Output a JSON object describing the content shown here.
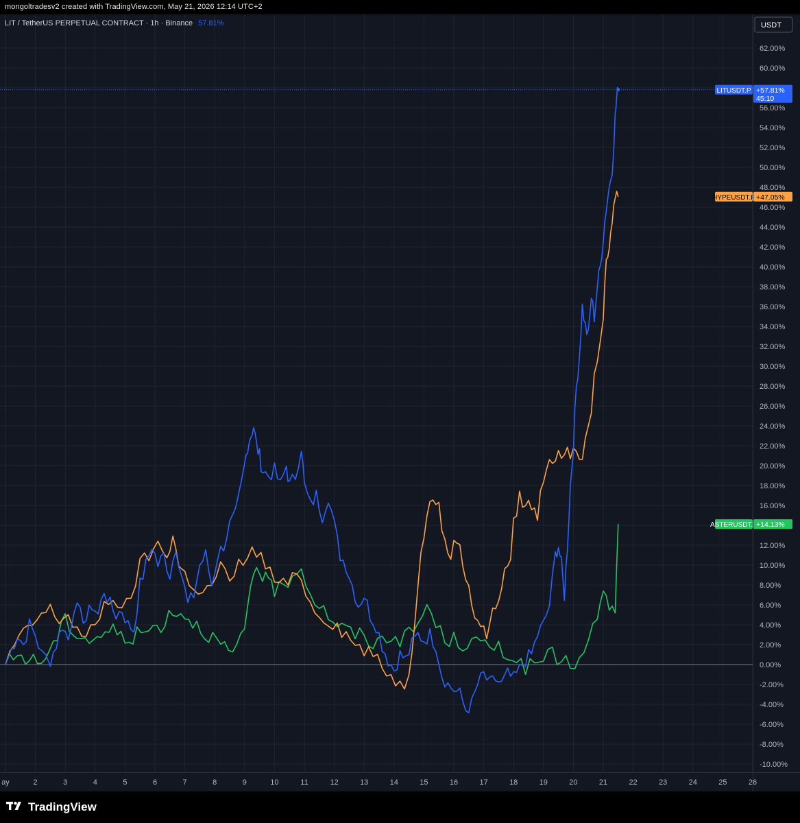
{
  "header": {
    "attribution": "mongoltradesv2 created with TradingView.com, May 21, 2026 12:14 UTC+2"
  },
  "symbol_bar": {
    "title": "LIT / TetherUS PERPETUAL CONTRACT · 1h · Binance",
    "change": "57.81%",
    "change_color": "#2962ff"
  },
  "currency_button": {
    "label": "USDT"
  },
  "footer": {
    "brand": "TradingView",
    "logo": "tradingview-logo-icon"
  },
  "colors": {
    "background": "#131722",
    "grid": "#1f2431",
    "axis_text": "#b2b5be",
    "zero_line": "#787b86",
    "lit": "#2962ff",
    "hype": "#ffa23f",
    "aster": "#22c55e"
  },
  "chart_data": {
    "type": "line",
    "title": "LIT / TetherUS PERPETUAL CONTRACT · 1h · Binance",
    "xlabel": "",
    "ylabel": "",
    "x_unit": "day of May 2026",
    "x_ticks": [
      "ay",
      "2",
      "3",
      "4",
      "5",
      "6",
      "7",
      "8",
      "9",
      "10",
      "11",
      "12",
      "13",
      "14",
      "15",
      "16",
      "17",
      "18",
      "19",
      "20",
      "21",
      "22",
      "23",
      "24",
      "25",
      "26"
    ],
    "x_range": [
      1,
      26
    ],
    "ylim": [
      -11,
      64
    ],
    "y_ticks": [
      "62.00%",
      "60.00%",
      "58.00%",
      "56.00%",
      "54.00%",
      "52.00%",
      "50.00%",
      "48.00%",
      "46.00%",
      "44.00%",
      "42.00%",
      "40.00%",
      "38.00%",
      "36.00%",
      "34.00%",
      "32.00%",
      "30.00%",
      "28.00%",
      "26.00%",
      "24.00%",
      "22.00%",
      "20.00%",
      "18.00%",
      "16.00%",
      "14.00%",
      "12.00%",
      "10.00%",
      "8.00%",
      "6.00%",
      "4.00%",
      "2.00%",
      "0.00%",
      "-2.00%",
      "-4.00%",
      "-6.00%",
      "-8.00%",
      "-10.00%"
    ],
    "grid": true,
    "zero_line": true,
    "series": [
      {
        "name": "LITUSDT.P",
        "label": "+57.81%",
        "countdown": "45:10",
        "color": "#2962ff",
        "points": [
          [
            1.0,
            0
          ],
          [
            1.2,
            1.5
          ],
          [
            1.4,
            3
          ],
          [
            1.6,
            2
          ],
          [
            1.8,
            4
          ],
          [
            2.0,
            3
          ],
          [
            2.2,
            1
          ],
          [
            2.5,
            0.5
          ],
          [
            2.7,
            2
          ],
          [
            2.9,
            4
          ],
          [
            3.1,
            2.5
          ],
          [
            3.3,
            6
          ],
          [
            3.5,
            5
          ],
          [
            3.7,
            4.5
          ],
          [
            3.9,
            6
          ],
          [
            4.1,
            5
          ],
          [
            4.3,
            7.5
          ],
          [
            4.5,
            6
          ],
          [
            4.7,
            5
          ],
          [
            4.9,
            5.5
          ],
          [
            5.1,
            4
          ],
          [
            5.3,
            3.5
          ],
          [
            5.5,
            8
          ],
          [
            5.7,
            10
          ],
          [
            5.9,
            12
          ],
          [
            6.1,
            10
          ],
          [
            6.3,
            11
          ],
          [
            6.5,
            9
          ],
          [
            6.7,
            12
          ],
          [
            6.9,
            9
          ],
          [
            7.1,
            6
          ],
          [
            7.3,
            7
          ],
          [
            7.5,
            10
          ],
          [
            7.7,
            11
          ],
          [
            7.9,
            8
          ],
          [
            8.1,
            11
          ],
          [
            8.3,
            12
          ],
          [
            8.5,
            14
          ],
          [
            8.7,
            15
          ],
          [
            8.9,
            18
          ],
          [
            9.0,
            20
          ],
          [
            9.1,
            22
          ],
          [
            9.2,
            23
          ],
          [
            9.3,
            24
          ],
          [
            9.4,
            22
          ],
          [
            9.5,
            21
          ],
          [
            9.6,
            19.5
          ],
          [
            9.8,
            19
          ],
          [
            10.0,
            19.5
          ],
          [
            10.2,
            18
          ],
          [
            10.4,
            20
          ],
          [
            10.5,
            18
          ],
          [
            10.7,
            19
          ],
          [
            10.9,
            22
          ],
          [
            11.0,
            18
          ],
          [
            11.2,
            16
          ],
          [
            11.4,
            17
          ],
          [
            11.6,
            15
          ],
          [
            11.8,
            17
          ],
          [
            12.0,
            14
          ],
          [
            12.2,
            11
          ],
          [
            12.4,
            10
          ],
          [
            12.6,
            8
          ],
          [
            12.8,
            6
          ],
          [
            13.0,
            7
          ],
          [
            13.2,
            5
          ],
          [
            13.4,
            4
          ],
          [
            13.6,
            2
          ],
          [
            13.8,
            0.5
          ],
          [
            14.0,
            -0.5
          ],
          [
            14.2,
            1
          ],
          [
            14.4,
            0.5
          ],
          [
            14.6,
            2
          ],
          [
            14.8,
            3
          ],
          [
            15.0,
            2.5
          ],
          [
            15.2,
            3
          ],
          [
            15.4,
            2
          ],
          [
            15.6,
            -1
          ],
          [
            15.8,
            -2
          ],
          [
            16.0,
            -2.5
          ],
          [
            16.2,
            -3
          ],
          [
            16.4,
            -4.5
          ],
          [
            16.6,
            -4
          ],
          [
            16.8,
            -2
          ],
          [
            17.0,
            -1
          ],
          [
            17.2,
            -2
          ],
          [
            17.4,
            -1.5
          ],
          [
            17.6,
            -2
          ],
          [
            17.8,
            -1
          ],
          [
            18.0,
            -1.5
          ],
          [
            18.2,
            -0.5
          ],
          [
            18.4,
            0.5
          ],
          [
            18.6,
            1
          ],
          [
            18.8,
            3
          ],
          [
            19.0,
            4
          ],
          [
            19.2,
            6
          ],
          [
            19.4,
            11
          ],
          [
            19.5,
            12
          ],
          [
            19.6,
            10
          ],
          [
            19.7,
            7
          ],
          [
            19.8,
            12
          ],
          [
            19.9,
            18
          ],
          [
            20.0,
            22
          ],
          [
            20.1,
            28
          ],
          [
            20.2,
            31
          ],
          [
            20.3,
            36
          ],
          [
            20.4,
            34
          ],
          [
            20.5,
            33
          ],
          [
            20.6,
            37
          ],
          [
            20.7,
            35
          ],
          [
            20.8,
            38
          ],
          [
            20.9,
            40
          ],
          [
            21.0,
            43
          ],
          [
            21.1,
            46
          ],
          [
            21.2,
            48
          ],
          [
            21.3,
            50
          ],
          [
            21.4,
            55
          ],
          [
            21.45,
            57
          ],
          [
            21.5,
            57.81
          ]
        ]
      },
      {
        "name": "HYPEUSDT.P",
        "label": "+47.05%",
        "color": "#ffa23f",
        "points": [
          [
            1.0,
            0
          ],
          [
            1.3,
            2
          ],
          [
            1.6,
            3
          ],
          [
            1.9,
            4
          ],
          [
            2.2,
            5
          ],
          [
            2.5,
            5.5
          ],
          [
            2.8,
            4.5
          ],
          [
            3.1,
            5
          ],
          [
            3.4,
            3.5
          ],
          [
            3.7,
            2.5
          ],
          [
            4.0,
            4
          ],
          [
            4.3,
            6
          ],
          [
            4.6,
            7
          ],
          [
            4.9,
            5
          ],
          [
            5.2,
            7
          ],
          [
            5.5,
            10
          ],
          [
            5.8,
            11
          ],
          [
            6.1,
            12
          ],
          [
            6.4,
            11
          ],
          [
            6.6,
            13
          ],
          [
            6.8,
            10
          ],
          [
            7.0,
            9
          ],
          [
            7.3,
            8
          ],
          [
            7.6,
            7
          ],
          [
            7.9,
            8
          ],
          [
            8.2,
            10
          ],
          [
            8.5,
            8
          ],
          [
            8.8,
            10
          ],
          [
            9.1,
            11
          ],
          [
            9.4,
            11.5
          ],
          [
            9.7,
            10
          ],
          [
            10.0,
            8.5
          ],
          [
            10.3,
            8
          ],
          [
            10.6,
            8.5
          ],
          [
            10.9,
            9
          ],
          [
            11.2,
            6
          ],
          [
            11.5,
            5
          ],
          [
            11.8,
            4.5
          ],
          [
            12.1,
            4
          ],
          [
            12.4,
            3
          ],
          [
            12.7,
            2
          ],
          [
            13.0,
            1.5
          ],
          [
            13.3,
            1
          ],
          [
            13.6,
            -0.5
          ],
          [
            13.9,
            -1
          ],
          [
            14.2,
            -2
          ],
          [
            14.5,
            -1.5
          ],
          [
            14.7,
            5
          ],
          [
            14.9,
            12
          ],
          [
            15.1,
            15
          ],
          [
            15.3,
            17
          ],
          [
            15.5,
            16
          ],
          [
            15.7,
            12
          ],
          [
            15.9,
            11
          ],
          [
            16.1,
            13
          ],
          [
            16.3,
            10
          ],
          [
            16.5,
            8
          ],
          [
            16.7,
            5
          ],
          [
            16.9,
            4
          ],
          [
            17.1,
            3
          ],
          [
            17.3,
            5
          ],
          [
            17.5,
            7
          ],
          [
            17.7,
            9
          ],
          [
            17.9,
            11
          ],
          [
            18.0,
            14
          ],
          [
            18.2,
            17
          ],
          [
            18.4,
            16
          ],
          [
            18.6,
            16
          ],
          [
            18.8,
            15
          ],
          [
            19.0,
            19
          ],
          [
            19.2,
            21
          ],
          [
            19.4,
            20.5
          ],
          [
            19.6,
            21
          ],
          [
            19.8,
            22
          ],
          [
            20.0,
            21
          ],
          [
            20.2,
            20.5
          ],
          [
            20.4,
            22
          ],
          [
            20.6,
            26
          ],
          [
            20.8,
            31
          ],
          [
            21.0,
            35
          ],
          [
            21.1,
            40
          ],
          [
            21.2,
            42
          ],
          [
            21.3,
            44
          ],
          [
            21.4,
            47.5
          ],
          [
            21.5,
            47.05
          ]
        ]
      },
      {
        "name": "ASTERUSDT.P",
        "label": "+14.13%",
        "color": "#22c55e",
        "points": [
          [
            1.0,
            0
          ],
          [
            1.4,
            1
          ],
          [
            1.8,
            0.5
          ],
          [
            2.2,
            0.3
          ],
          [
            2.6,
            2
          ],
          [
            3.0,
            4.5
          ],
          [
            3.4,
            3
          ],
          [
            3.8,
            2.5
          ],
          [
            4.2,
            3
          ],
          [
            4.6,
            3.5
          ],
          [
            5.0,
            2.5
          ],
          [
            5.4,
            3
          ],
          [
            5.8,
            3.5
          ],
          [
            6.2,
            4
          ],
          [
            6.6,
            5.5
          ],
          [
            7.0,
            5
          ],
          [
            7.4,
            4
          ],
          [
            7.8,
            3
          ],
          [
            8.2,
            2
          ],
          [
            8.6,
            1
          ],
          [
            9.0,
            3
          ],
          [
            9.2,
            8
          ],
          [
            9.4,
            10
          ],
          [
            9.6,
            9
          ],
          [
            9.8,
            8
          ],
          [
            10.0,
            7.5
          ],
          [
            10.3,
            8
          ],
          [
            10.6,
            9
          ],
          [
            10.9,
            10
          ],
          [
            11.2,
            7
          ],
          [
            11.5,
            6
          ],
          [
            11.8,
            5
          ],
          [
            12.1,
            4
          ],
          [
            12.4,
            3.5
          ],
          [
            12.7,
            3
          ],
          [
            13.0,
            3
          ],
          [
            13.3,
            2
          ],
          [
            13.6,
            2.5
          ],
          [
            13.9,
            3
          ],
          [
            14.2,
            2.5
          ],
          [
            14.5,
            3
          ],
          [
            14.8,
            4
          ],
          [
            15.1,
            6
          ],
          [
            15.4,
            4
          ],
          [
            15.7,
            2.5
          ],
          [
            16.0,
            2.5
          ],
          [
            16.3,
            2
          ],
          [
            16.6,
            2.5
          ],
          [
            16.9,
            2
          ],
          [
            17.2,
            1.5
          ],
          [
            17.5,
            2
          ],
          [
            17.8,
            1
          ],
          [
            18.1,
            0.5
          ],
          [
            18.4,
            -0.3
          ],
          [
            18.7,
            0
          ],
          [
            19.0,
            0.5
          ],
          [
            19.3,
            1
          ],
          [
            19.6,
            0.5
          ],
          [
            19.9,
            0
          ],
          [
            20.2,
            0.3
          ],
          [
            20.5,
            2
          ],
          [
            20.8,
            5
          ],
          [
            21.0,
            7
          ],
          [
            21.2,
            6
          ],
          [
            21.4,
            5
          ],
          [
            21.5,
            14.13
          ]
        ]
      }
    ]
  }
}
